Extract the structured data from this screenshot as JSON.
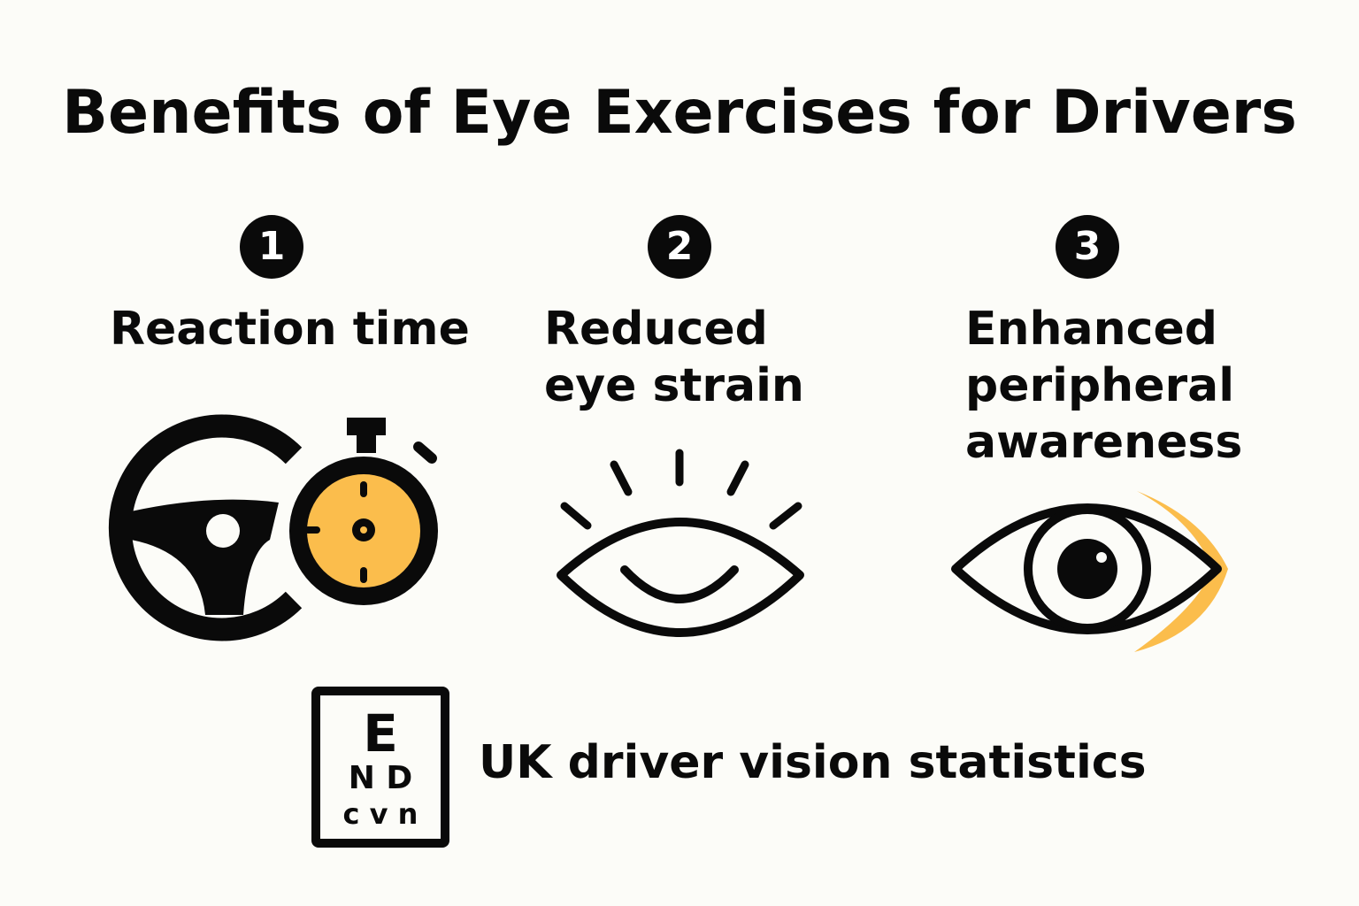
{
  "title": "Benefits of Eye Exercises for Drivers",
  "benefits": [
    {
      "number": "1",
      "label_lines": [
        "Reaction time"
      ],
      "icon": "steering-wheel-stopwatch-icon"
    },
    {
      "number": "2",
      "label_lines": [
        "Reduced",
        "eye strain"
      ],
      "icon": "relaxed-eye-icon"
    },
    {
      "number": "3",
      "label_lines": [
        "Enhanced",
        "peripheral",
        "awareness"
      ],
      "icon": "eye-peripheral-icon"
    }
  ],
  "footer": {
    "icon": "eye-chart-icon",
    "eye_chart_letters": [
      "E",
      "N D",
      "c v n"
    ],
    "label": "UK driver vision statistics"
  },
  "colors": {
    "background": "#fcfcf8",
    "ink": "#0a0a0a",
    "accent": "#fbbd4c"
  }
}
